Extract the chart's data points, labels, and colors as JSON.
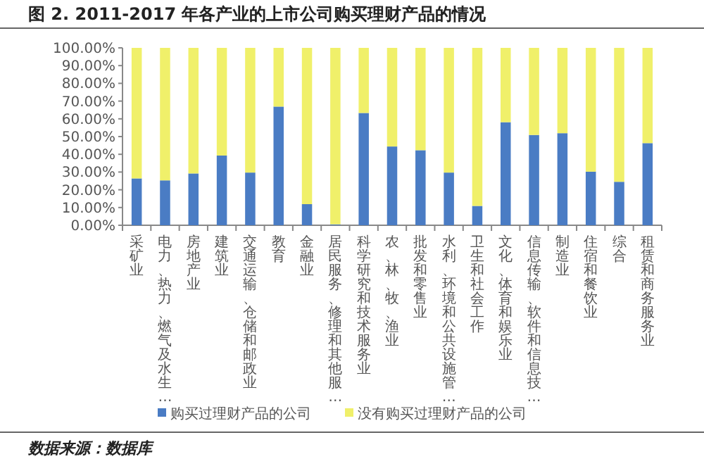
{
  "chart_data": {
    "type": "bar",
    "stacked": true,
    "title": "图 2. 2011-2017 年各产业的上市公司购买理财产品的情况",
    "categories": [
      "采矿业",
      "电力、热力、燃气及水生…",
      "房地产业",
      "建筑业",
      "交通运输、仓储和邮政业",
      "教育",
      "金融业",
      "居民服务、修理和其他服…",
      "科学研究和技术服务业",
      "农、林、牧、渔业",
      "批发和零售业",
      "水利、环境和公共设施管…",
      "卫生和社会工作",
      "文化、体育和娱乐业",
      "信息传输、软件和信息技…",
      "制造业",
      "住宿和餐饮业",
      "综合",
      "租赁和商务服务业"
    ],
    "series": [
      {
        "name": "购买过理财产品的公司",
        "color": "#4a7cc4",
        "values": [
          26.4,
          25.3,
          29.2,
          39.3,
          29.7,
          66.9,
          11.9,
          0.5,
          63.3,
          44.4,
          42.3,
          29.7,
          10.9,
          58.1,
          50.9,
          51.9,
          30.2,
          24.5,
          46.3
        ]
      },
      {
        "name": "没有购买过理财产品的公司",
        "color": "#f0f06a",
        "values": [
          73.6,
          74.7,
          70.8,
          60.7,
          70.3,
          33.1,
          88.1,
          99.5,
          36.7,
          55.6,
          57.7,
          70.3,
          89.1,
          41.9,
          49.1,
          48.1,
          69.8,
          75.5,
          53.7
        ]
      }
    ],
    "ylim": [
      0,
      100
    ],
    "yticks": [
      {
        "value": 0,
        "label": "0.00%"
      },
      {
        "value": 10,
        "label": "10.00%"
      },
      {
        "value": 20,
        "label": "20.00%"
      },
      {
        "value": 30,
        "label": "30.00%"
      },
      {
        "value": 40,
        "label": "40.00%"
      },
      {
        "value": 50,
        "label": "50.00%"
      },
      {
        "value": 60,
        "label": "60.00%"
      },
      {
        "value": 70,
        "label": "70.00%"
      },
      {
        "value": 80,
        "label": "80.00%"
      },
      {
        "value": 90,
        "label": "90.00%"
      },
      {
        "value": 100,
        "label": "100.00%"
      }
    ],
    "legend": "bottom",
    "annotations": [
      "数据来源：数据库"
    ]
  }
}
